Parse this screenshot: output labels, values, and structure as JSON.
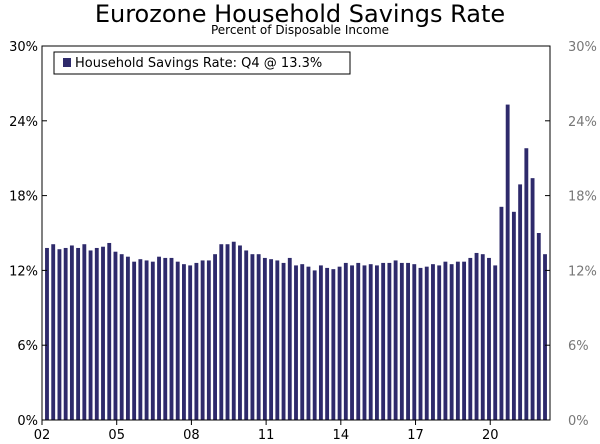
{
  "chart_data": {
    "type": "bar",
    "title": "Eurozone Household Savings Rate",
    "subtitle": "Percent of Disposable Income",
    "legend": "Household Savings Rate: Q4 @ 13.3%",
    "legend_position": "top-left",
    "xlabel": "",
    "ylabel": "",
    "ylim": [
      0,
      30
    ],
    "y_ticks": [
      0,
      6,
      12,
      18,
      24,
      30
    ],
    "y_tick_labels": [
      "0%",
      "6%",
      "12%",
      "18%",
      "24%",
      "30%"
    ],
    "x_tick_labels": [
      "02",
      "05",
      "08",
      "11",
      "14",
      "17",
      "20"
    ],
    "x_tick_years": [
      2002,
      2005,
      2008,
      2011,
      2014,
      2017,
      2020
    ],
    "start_year": 2002,
    "start_quarter": 1,
    "grid": false,
    "color": "#2e2a6b",
    "series": [
      {
        "name": "Household Savings Rate",
        "values": [
          13.8,
          14.1,
          13.7,
          13.8,
          14.0,
          13.8,
          14.1,
          13.6,
          13.8,
          13.9,
          14.2,
          13.5,
          13.3,
          13.1,
          12.7,
          12.9,
          12.8,
          12.7,
          13.1,
          13.0,
          13.0,
          12.7,
          12.5,
          12.4,
          12.6,
          12.8,
          12.8,
          13.3,
          14.1,
          14.1,
          14.3,
          14.0,
          13.6,
          13.3,
          13.3,
          13.0,
          12.9,
          12.8,
          12.6,
          13.0,
          12.4,
          12.5,
          12.3,
          12.0,
          12.4,
          12.2,
          12.1,
          12.3,
          12.6,
          12.4,
          12.6,
          12.4,
          12.5,
          12.4,
          12.6,
          12.6,
          12.8,
          12.6,
          12.6,
          12.5,
          12.2,
          12.3,
          12.5,
          12.4,
          12.7,
          12.5,
          12.7,
          12.7,
          13.0,
          13.4,
          13.3,
          13.0,
          12.4,
          17.1,
          25.3,
          16.7,
          18.9,
          21.8,
          19.4,
          15.0,
          13.3
        ]
      }
    ]
  }
}
